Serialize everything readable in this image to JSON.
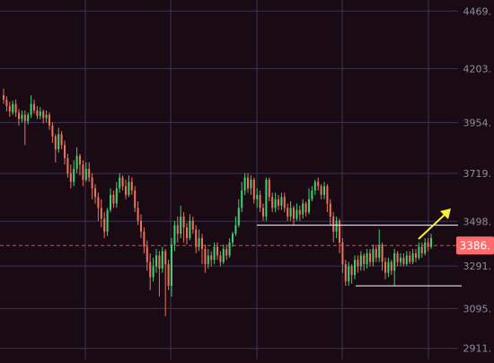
{
  "colors": {
    "background": "#1a0a14",
    "grid": "#3a3550",
    "axis_text": "#8e8ea0",
    "up": "#3ecf73",
    "down": "#e8735a",
    "price_line": "#ff5a5a",
    "price_tag_bg": "#ff6b6b",
    "price_tag_text": "#ffffff",
    "support_line": "#ffffff",
    "arrow": "#f7ef3a"
  },
  "price_tag": {
    "label": "3386.",
    "value": 3386
  },
  "chart_data": {
    "type": "candlestick",
    "ylim": [
      2860,
      4520
    ],
    "y_ticks": [
      {
        "value": 4469,
        "label": "4469."
      },
      {
        "value": 4203,
        "label": "4203."
      },
      {
        "value": 3954,
        "label": "3954."
      },
      {
        "value": 3719,
        "label": "3719."
      },
      {
        "value": 3498,
        "label": "3498."
      },
      {
        "value": 3291,
        "label": "3291."
      },
      {
        "value": 3095,
        "label": "3095."
      },
      {
        "value": 2911,
        "label": "2911."
      }
    ],
    "resistance_level": 3480,
    "support_level": 3200,
    "current_price": 3386,
    "candles": [
      {
        "o": 4080,
        "c": 4060,
        "h": 4110,
        "l": 4040
      },
      {
        "o": 4060,
        "c": 4030,
        "h": 4075,
        "l": 4005
      },
      {
        "o": 4030,
        "c": 4005,
        "h": 4050,
        "l": 3980
      },
      {
        "o": 4000,
        "c": 4040,
        "h": 4055,
        "l": 3990
      },
      {
        "o": 4040,
        "c": 4000,
        "h": 4060,
        "l": 3980
      },
      {
        "o": 4000,
        "c": 3970,
        "h": 4015,
        "l": 3940
      },
      {
        "o": 3970,
        "c": 3990,
        "h": 4010,
        "l": 3955
      },
      {
        "o": 3990,
        "c": 3960,
        "h": 4010,
        "l": 3850
      },
      {
        "o": 3960,
        "c": 3990,
        "h": 4000,
        "l": 3945
      },
      {
        "o": 3990,
        "c": 4040,
        "h": 4080,
        "l": 3975
      },
      {
        "o": 4040,
        "c": 4010,
        "h": 4060,
        "l": 3995
      },
      {
        "o": 4010,
        "c": 3985,
        "h": 4030,
        "l": 3970
      },
      {
        "o": 3985,
        "c": 4005,
        "h": 4025,
        "l": 3970
      },
      {
        "o": 4005,
        "c": 3975,
        "h": 4015,
        "l": 3950
      },
      {
        "o": 3975,
        "c": 3990,
        "h": 4010,
        "l": 3955
      },
      {
        "o": 3990,
        "c": 3940,
        "h": 4000,
        "l": 3920
      },
      {
        "o": 3940,
        "c": 3890,
        "h": 3955,
        "l": 3860
      },
      {
        "o": 3890,
        "c": 3830,
        "h": 3900,
        "l": 3770
      },
      {
        "o": 3830,
        "c": 3900,
        "h": 3930,
        "l": 3815
      },
      {
        "o": 3900,
        "c": 3850,
        "h": 3915,
        "l": 3830
      },
      {
        "o": 3850,
        "c": 3790,
        "h": 3870,
        "l": 3760
      },
      {
        "o": 3790,
        "c": 3720,
        "h": 3810,
        "l": 3700
      },
      {
        "o": 3720,
        "c": 3680,
        "h": 3760,
        "l": 3650
      },
      {
        "o": 3680,
        "c": 3740,
        "h": 3780,
        "l": 3660
      },
      {
        "o": 3740,
        "c": 3800,
        "h": 3840,
        "l": 3720
      },
      {
        "o": 3800,
        "c": 3760,
        "h": 3810,
        "l": 3710
      },
      {
        "o": 3760,
        "c": 3690,
        "h": 3780,
        "l": 3660
      },
      {
        "o": 3690,
        "c": 3740,
        "h": 3770,
        "l": 3680
      },
      {
        "o": 3740,
        "c": 3700,
        "h": 3770,
        "l": 3680
      },
      {
        "o": 3700,
        "c": 3650,
        "h": 3720,
        "l": 3600
      },
      {
        "o": 3650,
        "c": 3610,
        "h": 3670,
        "l": 3580
      },
      {
        "o": 3610,
        "c": 3560,
        "h": 3630,
        "l": 3500
      },
      {
        "o": 3560,
        "c": 3510,
        "h": 3600,
        "l": 3470
      },
      {
        "o": 3510,
        "c": 3450,
        "h": 3540,
        "l": 3420
      },
      {
        "o": 3450,
        "c": 3550,
        "h": 3560,
        "l": 3430
      },
      {
        "o": 3550,
        "c": 3620,
        "h": 3650,
        "l": 3540
      },
      {
        "o": 3620,
        "c": 3580,
        "h": 3640,
        "l": 3560
      },
      {
        "o": 3580,
        "c": 3650,
        "h": 3680,
        "l": 3560
      },
      {
        "o": 3650,
        "c": 3700,
        "h": 3720,
        "l": 3630
      },
      {
        "o": 3700,
        "c": 3660,
        "h": 3710,
        "l": 3640
      },
      {
        "o": 3660,
        "c": 3620,
        "h": 3690,
        "l": 3600
      },
      {
        "o": 3620,
        "c": 3680,
        "h": 3710,
        "l": 3610
      },
      {
        "o": 3680,
        "c": 3640,
        "h": 3700,
        "l": 3620
      },
      {
        "o": 3640,
        "c": 3560,
        "h": 3660,
        "l": 3540
      },
      {
        "o": 3560,
        "c": 3500,
        "h": 3590,
        "l": 3480
      },
      {
        "o": 3500,
        "c": 3450,
        "h": 3530,
        "l": 3420
      },
      {
        "o": 3450,
        "c": 3380,
        "h": 3470,
        "l": 3350
      },
      {
        "o": 3380,
        "c": 3310,
        "h": 3410,
        "l": 3270
      },
      {
        "o": 3310,
        "c": 3240,
        "h": 3350,
        "l": 3180
      },
      {
        "o": 3240,
        "c": 3290,
        "h": 3330,
        "l": 3220
      },
      {
        "o": 3290,
        "c": 3340,
        "h": 3370,
        "l": 3260
      },
      {
        "o": 3340,
        "c": 3280,
        "h": 3360,
        "l": 3150
      },
      {
        "o": 3280,
        "c": 3360,
        "h": 3380,
        "l": 3260
      },
      {
        "o": 3360,
        "c": 3300,
        "h": 3370,
        "l": 3060
      },
      {
        "o": 3300,
        "c": 3200,
        "h": 3320,
        "l": 3180
      },
      {
        "o": 3200,
        "c": 3390,
        "h": 3420,
        "l": 3150
      },
      {
        "o": 3390,
        "c": 3480,
        "h": 3500,
        "l": 3360
      },
      {
        "o": 3480,
        "c": 3440,
        "h": 3520,
        "l": 3400
      },
      {
        "o": 3440,
        "c": 3520,
        "h": 3570,
        "l": 3420
      },
      {
        "o": 3520,
        "c": 3470,
        "h": 3540,
        "l": 3400
      },
      {
        "o": 3470,
        "c": 3420,
        "h": 3490,
        "l": 3390
      },
      {
        "o": 3420,
        "c": 3500,
        "h": 3530,
        "l": 3410
      },
      {
        "o": 3500,
        "c": 3460,
        "h": 3520,
        "l": 3440
      },
      {
        "o": 3460,
        "c": 3380,
        "h": 3480,
        "l": 3350
      },
      {
        "o": 3380,
        "c": 3420,
        "h": 3460,
        "l": 3360
      },
      {
        "o": 3420,
        "c": 3370,
        "h": 3440,
        "l": 3300
      },
      {
        "o": 3370,
        "c": 3300,
        "h": 3390,
        "l": 3260
      },
      {
        "o": 3300,
        "c": 3340,
        "h": 3370,
        "l": 3280
      },
      {
        "o": 3340,
        "c": 3320,
        "h": 3360,
        "l": 3290
      },
      {
        "o": 3320,
        "c": 3380,
        "h": 3400,
        "l": 3300
      },
      {
        "o": 3380,
        "c": 3340,
        "h": 3400,
        "l": 3320
      },
      {
        "o": 3340,
        "c": 3310,
        "h": 3360,
        "l": 3290
      },
      {
        "o": 3310,
        "c": 3370,
        "h": 3390,
        "l": 3300
      },
      {
        "o": 3370,
        "c": 3340,
        "h": 3390,
        "l": 3320
      },
      {
        "o": 3340,
        "c": 3400,
        "h": 3420,
        "l": 3330
      },
      {
        "o": 3400,
        "c": 3440,
        "h": 3450,
        "l": 3380
      },
      {
        "o": 3440,
        "c": 3480,
        "h": 3520,
        "l": 3430
      },
      {
        "o": 3480,
        "c": 3560,
        "h": 3600,
        "l": 3470
      },
      {
        "o": 3560,
        "c": 3640,
        "h": 3680,
        "l": 3540
      },
      {
        "o": 3640,
        "c": 3700,
        "h": 3720,
        "l": 3620
      },
      {
        "o": 3700,
        "c": 3650,
        "h": 3720,
        "l": 3630
      },
      {
        "o": 3650,
        "c": 3690,
        "h": 3710,
        "l": 3620
      },
      {
        "o": 3690,
        "c": 3600,
        "h": 3700,
        "l": 3580
      },
      {
        "o": 3600,
        "c": 3620,
        "h": 3650,
        "l": 3560
      },
      {
        "o": 3620,
        "c": 3560,
        "h": 3640,
        "l": 3540
      },
      {
        "o": 3560,
        "c": 3520,
        "h": 3580,
        "l": 3500
      },
      {
        "o": 3520,
        "c": 3690,
        "h": 3700,
        "l": 3500
      },
      {
        "o": 3690,
        "c": 3610,
        "h": 3700,
        "l": 3590
      },
      {
        "o": 3610,
        "c": 3560,
        "h": 3630,
        "l": 3540
      },
      {
        "o": 3560,
        "c": 3600,
        "h": 3630,
        "l": 3540
      },
      {
        "o": 3600,
        "c": 3570,
        "h": 3620,
        "l": 3550
      },
      {
        "o": 3570,
        "c": 3610,
        "h": 3630,
        "l": 3550
      },
      {
        "o": 3610,
        "c": 3560,
        "h": 3630,
        "l": 3540
      },
      {
        "o": 3560,
        "c": 3520,
        "h": 3580,
        "l": 3500
      },
      {
        "o": 3520,
        "c": 3560,
        "h": 3590,
        "l": 3500
      },
      {
        "o": 3560,
        "c": 3510,
        "h": 3570,
        "l": 3480
      },
      {
        "o": 3510,
        "c": 3550,
        "h": 3580,
        "l": 3500
      },
      {
        "o": 3550,
        "c": 3530,
        "h": 3570,
        "l": 3500
      },
      {
        "o": 3530,
        "c": 3580,
        "h": 3600,
        "l": 3510
      },
      {
        "o": 3580,
        "c": 3540,
        "h": 3590,
        "l": 3520
      },
      {
        "o": 3540,
        "c": 3600,
        "h": 3650,
        "l": 3530
      },
      {
        "o": 3600,
        "c": 3640,
        "h": 3660,
        "l": 3590
      },
      {
        "o": 3640,
        "c": 3680,
        "h": 3690,
        "l": 3620
      },
      {
        "o": 3680,
        "c": 3660,
        "h": 3700,
        "l": 3640
      },
      {
        "o": 3660,
        "c": 3620,
        "h": 3670,
        "l": 3600
      },
      {
        "o": 3620,
        "c": 3660,
        "h": 3680,
        "l": 3600
      },
      {
        "o": 3660,
        "c": 3580,
        "h": 3670,
        "l": 3540
      },
      {
        "o": 3580,
        "c": 3520,
        "h": 3600,
        "l": 3480
      },
      {
        "o": 3520,
        "c": 3450,
        "h": 3540,
        "l": 3400
      },
      {
        "o": 3450,
        "c": 3500,
        "h": 3520,
        "l": 3420
      },
      {
        "o": 3500,
        "c": 3400,
        "h": 3510,
        "l": 3350
      },
      {
        "o": 3400,
        "c": 3300,
        "h": 3420,
        "l": 3260
      },
      {
        "o": 3300,
        "c": 3220,
        "h": 3320,
        "l": 3200
      },
      {
        "o": 3220,
        "c": 3290,
        "h": 3310,
        "l": 3200
      },
      {
        "o": 3290,
        "c": 3250,
        "h": 3300,
        "l": 3210
      },
      {
        "o": 3250,
        "c": 3320,
        "h": 3340,
        "l": 3230
      },
      {
        "o": 3320,
        "c": 3290,
        "h": 3340,
        "l": 3260
      },
      {
        "o": 3290,
        "c": 3340,
        "h": 3360,
        "l": 3270
      },
      {
        "o": 3340,
        "c": 3300,
        "h": 3350,
        "l": 3270
      },
      {
        "o": 3300,
        "c": 3350,
        "h": 3370,
        "l": 3280
      },
      {
        "o": 3350,
        "c": 3310,
        "h": 3370,
        "l": 3290
      },
      {
        "o": 3310,
        "c": 3370,
        "h": 3390,
        "l": 3290
      },
      {
        "o": 3370,
        "c": 3330,
        "h": 3390,
        "l": 3310
      },
      {
        "o": 3330,
        "c": 3390,
        "h": 3460,
        "l": 3310
      },
      {
        "o": 3390,
        "c": 3310,
        "h": 3400,
        "l": 3270
      },
      {
        "o": 3310,
        "c": 3260,
        "h": 3330,
        "l": 3230
      },
      {
        "o": 3260,
        "c": 3310,
        "h": 3330,
        "l": 3240
      },
      {
        "o": 3310,
        "c": 3270,
        "h": 3320,
        "l": 3250
      },
      {
        "o": 3270,
        "c": 3350,
        "h": 3370,
        "l": 3200
      },
      {
        "o": 3350,
        "c": 3310,
        "h": 3360,
        "l": 3290
      },
      {
        "o": 3310,
        "c": 3330,
        "h": 3350,
        "l": 3290
      },
      {
        "o": 3330,
        "c": 3300,
        "h": 3350,
        "l": 3290
      },
      {
        "o": 3300,
        "c": 3340,
        "h": 3360,
        "l": 3290
      },
      {
        "o": 3340,
        "c": 3310,
        "h": 3360,
        "l": 3300
      },
      {
        "o": 3310,
        "c": 3350,
        "h": 3370,
        "l": 3300
      },
      {
        "o": 3350,
        "c": 3330,
        "h": 3370,
        "l": 3310
      },
      {
        "o": 3330,
        "c": 3380,
        "h": 3400,
        "l": 3320
      },
      {
        "o": 3380,
        "c": 3350,
        "h": 3400,
        "l": 3330
      },
      {
        "o": 3350,
        "c": 3400,
        "h": 3420,
        "l": 3340
      },
      {
        "o": 3400,
        "c": 3380,
        "h": 3420,
        "l": 3360
      },
      {
        "o": 3380,
        "c": 3420,
        "h": 3440,
        "l": 3370
      }
    ]
  }
}
